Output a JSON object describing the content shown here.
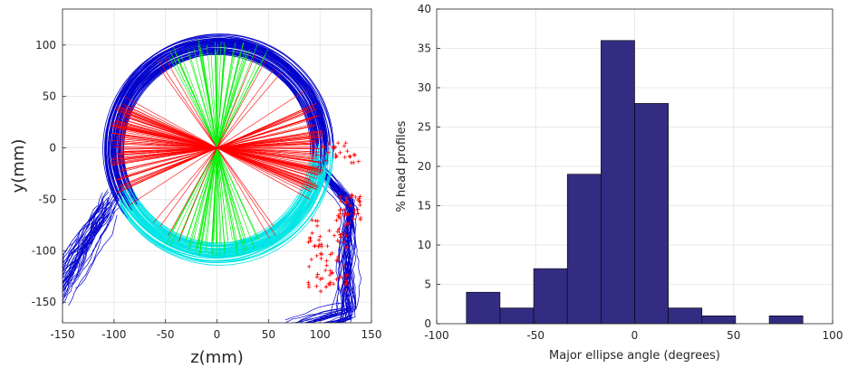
{
  "chart_data": [
    {
      "type": "scatter",
      "description_kind": "head-profile overlay",
      "xlabel": "z(mm)",
      "ylabel": "y(mm)",
      "xlim": [
        -150,
        150
      ],
      "ylim": [
        -170,
        135
      ],
      "xticks": [
        -150,
        -100,
        -50,
        0,
        50,
        100,
        150
      ],
      "yticks": [
        -150,
        -100,
        -50,
        0,
        50,
        100
      ],
      "grid": true,
      "colors": {
        "upper_head_contours": "#0000cc",
        "lower_head_contours": "#00e5e5",
        "major_axes": "#ff0000",
        "minor_axes": "#00ee00",
        "face_contours": "#0000cc",
        "face_markers": "#ff0000"
      },
      "head_circle": {
        "center": [
          0,
          0
        ],
        "radius_approx": [
          95,
          112
        ]
      },
      "major_axis_angle_range_deg": [
        -85,
        85
      ],
      "face_region": {
        "z_range": [
          75,
          140
        ],
        "y_range": [
          -150,
          20
        ]
      },
      "neck_region": {
        "z_range": [
          -150,
          -95
        ],
        "y_range": [
          -150,
          -45
        ]
      }
    },
    {
      "type": "bar",
      "subtype": "histogram",
      "xlabel": "Major ellipse angle (degrees)",
      "ylabel": "% head profiles",
      "xlim": [
        -100,
        100
      ],
      "ylim": [
        0,
        40
      ],
      "xticks": [
        -100,
        -50,
        0,
        50,
        100
      ],
      "yticks": [
        0,
        5,
        10,
        15,
        20,
        25,
        30,
        35,
        40
      ],
      "bin_width": 17,
      "bins": [
        {
          "left": -85,
          "value": 4
        },
        {
          "left": -68,
          "value": 2
        },
        {
          "left": -51,
          "value": 7
        },
        {
          "left": -34,
          "value": 19
        },
        {
          "left": -17,
          "value": 36
        },
        {
          "left": 0,
          "value": 28
        },
        {
          "left": 17,
          "value": 2
        },
        {
          "left": 34,
          "value": 1
        },
        {
          "left": 51,
          "value": 0
        },
        {
          "left": 68,
          "value": 1
        }
      ],
      "bar_color": "#332c82",
      "grid": true
    }
  ]
}
